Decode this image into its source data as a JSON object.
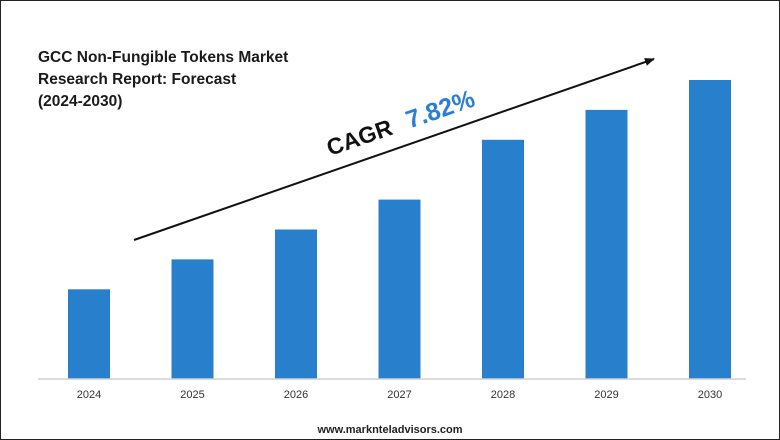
{
  "title_lines": [
    "GCC Non-Fungible Tokens Market",
    "Research Report: Forecast",
    "(2024-2030)"
  ],
  "cagr": {
    "label": "CAGR",
    "value": "7.82%",
    "label_color": "#111111",
    "value_color": "#2a7fd4"
  },
  "footer": "www.marknteladvisors.com",
  "colors": {
    "bar": "#2880cc",
    "axis": "#d0d0d0",
    "arrow": "#111111"
  },
  "chart_data": {
    "type": "bar",
    "categories": [
      "2024",
      "2025",
      "2026",
      "2027",
      "2028",
      "2029",
      "2030"
    ],
    "values": [
      30,
      40,
      50,
      60,
      80,
      90,
      100
    ],
    "ylim": [
      0,
      100
    ],
    "title": "GCC Non-Fungible Tokens Market Research Report: Forecast (2024-2030)",
    "xlabel": "",
    "ylabel": "",
    "grid": false,
    "legend": "none",
    "annotation": "CAGR 7.82%"
  }
}
